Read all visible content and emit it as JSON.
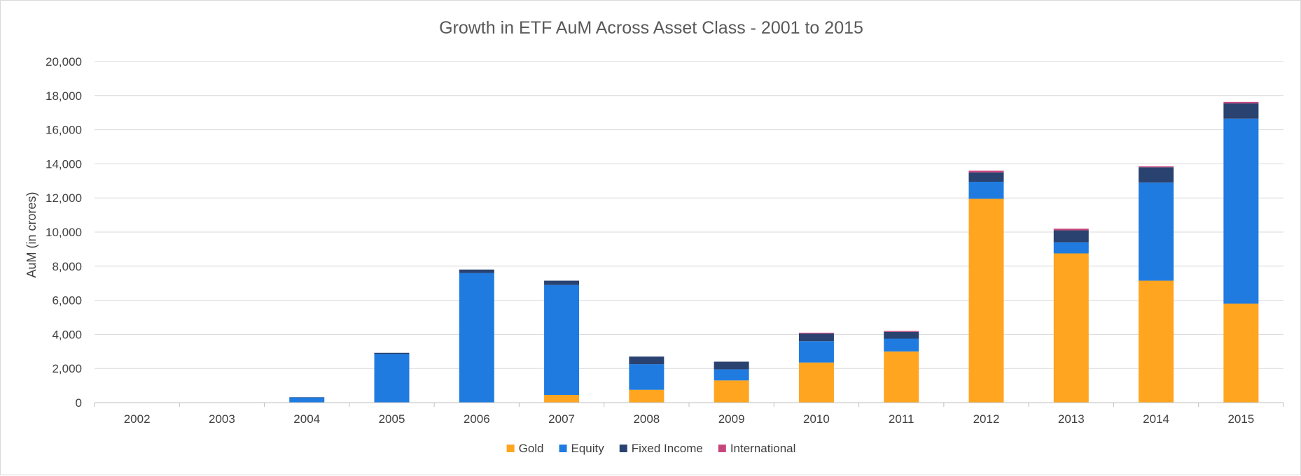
{
  "chart_data": {
    "type": "bar",
    "stacked": true,
    "title": "Growth in ETF AuM Across Asset Class - 2001 to 2015",
    "xlabel": "",
    "ylabel": "AuM (in crores)",
    "ylim": [
      0,
      20000
    ],
    "yticks": [
      0,
      2000,
      4000,
      6000,
      8000,
      10000,
      12000,
      14000,
      16000,
      18000,
      20000
    ],
    "ytick_labels": [
      "0",
      "2,000",
      "4,000",
      "6,000",
      "8,000",
      "10,000",
      "12,000",
      "14,000",
      "16,000",
      "18,000",
      "20,000"
    ],
    "grid": true,
    "legend_position": "bottom",
    "categories": [
      "2002",
      "2003",
      "2004",
      "2005",
      "2006",
      "2007",
      "2008",
      "2009",
      "2010",
      "2011",
      "2012",
      "2013",
      "2014",
      "2015"
    ],
    "series": [
      {
        "name": "Gold",
        "color": "#FFA520",
        "values": [
          0,
          0,
          0,
          0,
          0,
          450,
          750,
          1300,
          2350,
          3000,
          11950,
          8750,
          7150,
          5800
        ]
      },
      {
        "name": "Equity",
        "color": "#1F7BE0",
        "values": [
          0,
          0,
          300,
          2850,
          7600,
          6450,
          1500,
          650,
          1250,
          750,
          1000,
          650,
          5750,
          10850
        ]
      },
      {
        "name": "Fixed Income",
        "color": "#29426F",
        "values": [
          0,
          0,
          20,
          70,
          200,
          250,
          450,
          450,
          450,
          400,
          550,
          700,
          900,
          900
        ]
      },
      {
        "name": "International",
        "color": "#C7457D",
        "values": [
          0,
          0,
          0,
          0,
          0,
          0,
          0,
          0,
          50,
          50,
          100,
          100,
          50,
          80
        ]
      }
    ]
  }
}
